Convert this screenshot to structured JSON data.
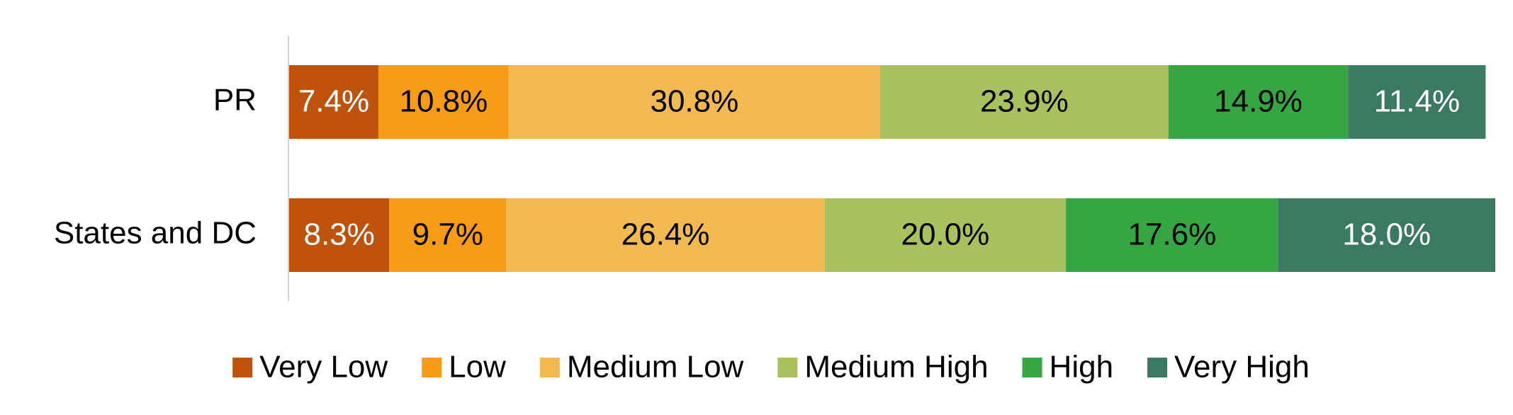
{
  "chart_data": {
    "type": "stacked-bar-horizontal",
    "categories": [
      "PR",
      "States and DC"
    ],
    "xlim": [
      0,
      100
    ],
    "series": [
      {
        "name": "Very Low",
        "color": "#c0530b",
        "values": [
          7.4,
          8.3
        ],
        "value_labels": [
          "7.4%",
          "8.3%"
        ]
      },
      {
        "name": "Low",
        "color": "#f79c14",
        "values": [
          10.8,
          9.7
        ],
        "value_labels": [
          "10.8%",
          "9.7%"
        ]
      },
      {
        "name": "Medium Low",
        "color": "#f2b950",
        "values": [
          30.8,
          26.4
        ],
        "value_labels": [
          "30.8%",
          "26.4%"
        ]
      },
      {
        "name": "Medium High",
        "color": "#a8c05e",
        "values": [
          23.9,
          20.0
        ],
        "value_labels": [
          "23.9%",
          "20.0%"
        ]
      },
      {
        "name": "High",
        "color": "#35a642",
        "values": [
          14.9,
          17.6
        ],
        "value_labels": [
          "14.9%",
          "17.6%"
        ]
      },
      {
        "name": "Very High",
        "color": "#3a7a63",
        "values": [
          11.4,
          18.0
        ],
        "value_labels": [
          "11.4%",
          "18.0%"
        ]
      }
    ]
  }
}
